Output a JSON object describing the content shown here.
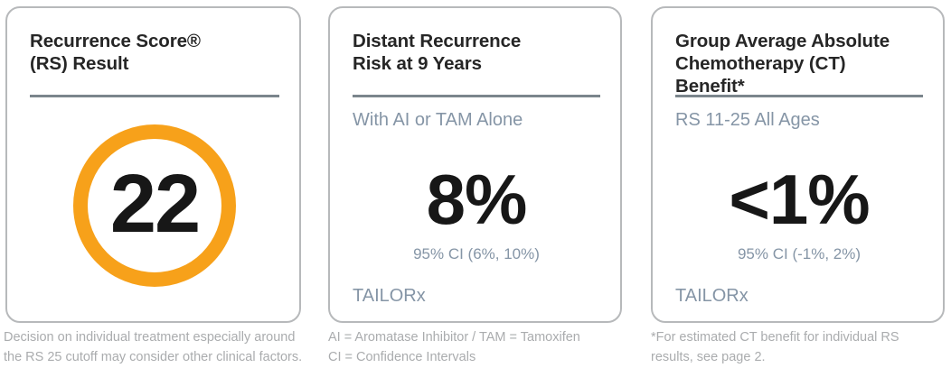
{
  "colors": {
    "accent_orange": "#f7a11a",
    "slate_text": "#8595a6",
    "divider_gray": "#7b858c",
    "card_border": "#b7b9bb",
    "footnote_gray": "#aaacae",
    "title_text": "#262626"
  },
  "cards": [
    {
      "title": "Recurrence Score®\n(RS) Result",
      "score": "22",
      "footnote": "Decision on individual treatment especially around\nthe RS 25 cutoff may consider other clinical factors."
    },
    {
      "title": "Distant Recurrence\nRisk at 9 Years",
      "subtitle": "With AI or TAM Alone",
      "value": "8%",
      "ci": "95% CI (6%, 10%)",
      "source": "TAILORx",
      "footnote": "AI = Aromatase Inhibitor / TAM = Tamoxifen\nCI = Confidence Intervals"
    },
    {
      "title": "Group Average Absolute\nChemotherapy (CT)\nBenefit*",
      "subtitle": "RS 11-25 All Ages",
      "value": "<1%",
      "ci": "95% CI (-1%, 2%)",
      "source": "TAILORx",
      "footnote": "*For estimated CT benefit for individual RS\nresults, see page 2."
    }
  ]
}
